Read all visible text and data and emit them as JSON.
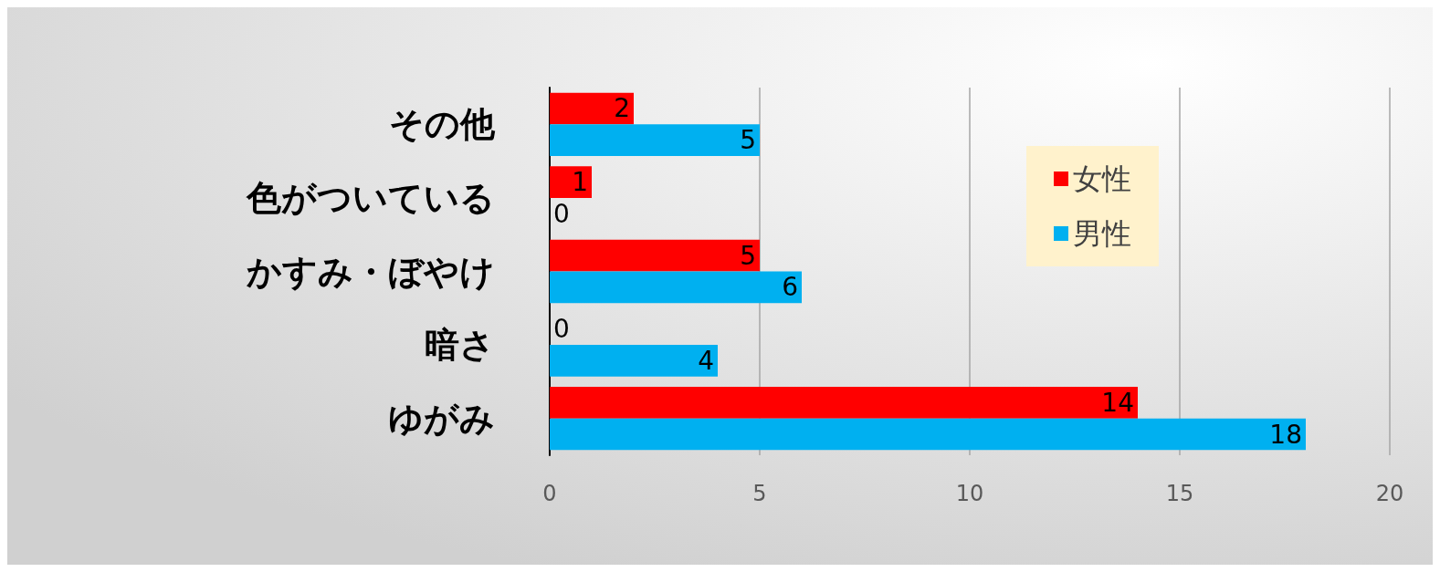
{
  "chart_data": {
    "type": "bar",
    "orientation": "horizontal",
    "categories": [
      "その他",
      "色がついている",
      "かすみ・ぼやけ",
      "暗さ",
      "ゆがみ"
    ],
    "series": [
      {
        "name": "女性",
        "color": "#ff0000",
        "values": [
          2,
          1,
          5,
          0,
          14
        ]
      },
      {
        "name": "男性",
        "color": "#00b0f0",
        "values": [
          5,
          0,
          6,
          4,
          18
        ]
      }
    ],
    "xlim": [
      0,
      20
    ],
    "xticks": [
      0,
      5,
      10,
      15,
      20
    ],
    "grid": "x",
    "legend": "top right",
    "data_labels": true
  }
}
